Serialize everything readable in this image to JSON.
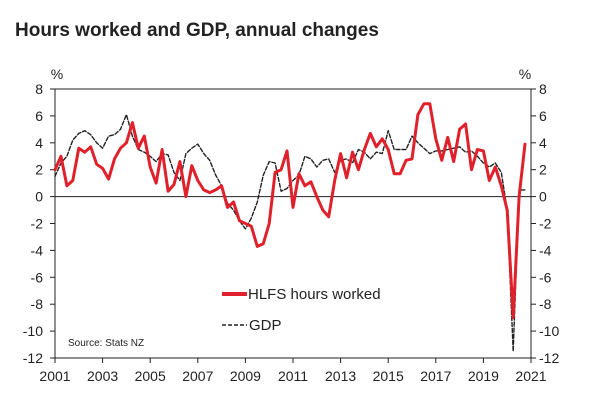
{
  "chart_data": {
    "type": "line",
    "title": "Hours worked and GDP, annual changes",
    "y_unit_left": "%",
    "y_unit_right": "%",
    "ylim": [
      -12,
      8
    ],
    "yticks": [
      8,
      6,
      4,
      2,
      0,
      -2,
      -4,
      -6,
      -8,
      -10,
      -12
    ],
    "xlim": [
      2001,
      2021
    ],
    "xticks": [
      "2001",
      "2003",
      "2005",
      "2007",
      "2009",
      "2011",
      "2013",
      "2015",
      "2017",
      "2019",
      "2021"
    ],
    "source": "Source: Stats NZ",
    "legend_position": "lower-center",
    "series": [
      {
        "name": "HLFS hours worked",
        "color": "#e0202a",
        "style": "solid",
        "x": [
          2001.0,
          2001.25,
          2001.5,
          2001.75,
          2002.0,
          2002.25,
          2002.5,
          2002.75,
          2003.0,
          2003.25,
          2003.5,
          2003.75,
          2004.0,
          2004.25,
          2004.5,
          2004.75,
          2005.0,
          2005.25,
          2005.5,
          2005.75,
          2006.0,
          2006.25,
          2006.5,
          2006.75,
          2007.0,
          2007.25,
          2007.5,
          2007.75,
          2008.0,
          2008.25,
          2008.5,
          2008.75,
          2009.0,
          2009.25,
          2009.5,
          2009.75,
          2010.0,
          2010.25,
          2010.5,
          2010.75,
          2011.0,
          2011.25,
          2011.5,
          2011.75,
          2012.0,
          2012.25,
          2012.5,
          2012.75,
          2013.0,
          2013.25,
          2013.5,
          2013.75,
          2014.0,
          2014.25,
          2014.5,
          2014.75,
          2015.0,
          2015.25,
          2015.5,
          2015.75,
          2016.0,
          2016.25,
          2016.5,
          2016.75,
          2017.0,
          2017.25,
          2017.5,
          2017.75,
          2018.0,
          2018.25,
          2018.5,
          2018.75,
          2019.0,
          2019.25,
          2019.5,
          2019.75,
          2020.0,
          2020.25,
          2020.5,
          2020.75
        ],
        "values": [
          2.0,
          3.0,
          0.8,
          1.2,
          3.6,
          3.3,
          3.7,
          2.4,
          2.1,
          1.3,
          2.8,
          3.6,
          4.0,
          5.5,
          3.6,
          4.5,
          2.2,
          1.0,
          3.5,
          0.4,
          0.9,
          2.6,
          0.0,
          2.3,
          1.2,
          0.5,
          0.3,
          0.5,
          0.8,
          -0.8,
          -0.4,
          -1.8,
          -2.0,
          -2.2,
          -3.7,
          -3.5,
          -2.0,
          1.8,
          2.0,
          3.4,
          -0.8,
          1.7,
          0.8,
          1.1,
          0.0,
          -1.0,
          -1.5,
          1.2,
          3.2,
          1.4,
          3.3,
          2.0,
          3.5,
          4.7,
          3.7,
          4.3,
          3.5,
          1.7,
          1.7,
          2.7,
          2.8,
          6.1,
          6.9,
          6.9,
          4.3,
          2.7,
          4.4,
          2.6,
          5.0,
          5.4,
          2.0,
          3.5,
          3.4,
          1.2,
          2.2,
          0.8,
          -1.0,
          -9.0,
          0.0,
          3.9
        ]
      },
      {
        "name": "GDP",
        "color": "#222222",
        "style": "dashed",
        "x": [
          2001.0,
          2001.25,
          2001.5,
          2001.75,
          2002.0,
          2002.25,
          2002.5,
          2002.75,
          2003.0,
          2003.25,
          2003.5,
          2003.75,
          2004.0,
          2004.25,
          2004.5,
          2004.75,
          2005.0,
          2005.25,
          2005.5,
          2005.75,
          2006.0,
          2006.25,
          2006.5,
          2006.75,
          2007.0,
          2007.25,
          2007.5,
          2007.75,
          2008.0,
          2008.25,
          2008.5,
          2008.75,
          2009.0,
          2009.25,
          2009.5,
          2009.75,
          2010.0,
          2010.25,
          2010.5,
          2010.75,
          2011.0,
          2011.25,
          2011.5,
          2011.75,
          2012.0,
          2012.25,
          2012.5,
          2012.75,
          2013.0,
          2013.25,
          2013.5,
          2013.75,
          2014.0,
          2014.25,
          2014.5,
          2014.75,
          2015.0,
          2015.25,
          2015.5,
          2015.75,
          2016.0,
          2016.25,
          2016.5,
          2016.75,
          2017.0,
          2017.25,
          2017.5,
          2017.75,
          2018.0,
          2018.25,
          2018.5,
          2018.75,
          2019.0,
          2019.25,
          2019.5,
          2019.75,
          2020.0,
          2020.25,
          2020.5,
          2020.75
        ],
        "values": [
          1.5,
          2.5,
          3.0,
          4.2,
          4.7,
          4.9,
          4.6,
          4.0,
          3.6,
          4.5,
          4.6,
          5.0,
          6.1,
          4.5,
          3.5,
          3.3,
          3.0,
          2.6,
          3.2,
          3.1,
          1.8,
          1.2,
          3.2,
          3.6,
          3.9,
          3.2,
          2.7,
          1.6,
          0.8,
          -0.5,
          -1.0,
          -1.8,
          -2.4,
          -1.6,
          -0.4,
          1.6,
          2.6,
          2.5,
          0.4,
          0.6,
          1.2,
          1.6,
          3.0,
          2.8,
          2.2,
          2.7,
          2.8,
          1.8,
          2.7,
          2.8,
          2.5,
          3.5,
          3.3,
          2.8,
          3.3,
          3.2,
          4.9,
          3.5,
          3.5,
          3.5,
          4.5,
          4.0,
          3.6,
          3.2,
          3.4,
          3.4,
          3.5,
          3.6,
          3.7,
          3.3,
          3.4,
          3.0,
          2.5,
          2.2,
          2.5,
          1.8,
          -1.0,
          -11.5,
          0.5,
          0.5
        ]
      }
    ]
  }
}
